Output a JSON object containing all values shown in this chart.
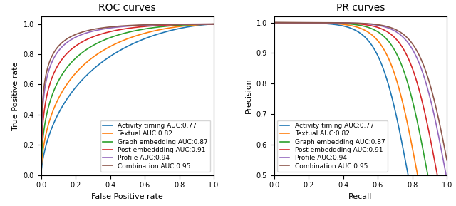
{
  "roc_title": "ROC curves",
  "pr_title": "PR curves",
  "roc_xlabel": "False Positive rate",
  "roc_ylabel": "True Positive rate",
  "pr_xlabel": "Recall",
  "pr_ylabel": "Precision",
  "curves": [
    {
      "label": "Activity timing AUC:0.77",
      "color": "#1f77b4",
      "auc_roc": 0.77,
      "auc_pr": 0.77
    },
    {
      "label": "Textual AUC:0.82",
      "color": "#ff7f0e",
      "auc_roc": 0.82,
      "auc_pr": 0.82
    },
    {
      "label": "Graph embedding AUC:0.87",
      "color": "#2ca02c",
      "auc_roc": 0.87,
      "auc_pr": 0.87
    },
    {
      "label": "Post embeddding AUC:0.91",
      "color": "#d62728",
      "auc_roc": 0.91,
      "auc_pr": 0.91
    },
    {
      "label": "Profile AUC:0.94",
      "color": "#9467bd",
      "auc_roc": 0.94,
      "auc_pr": 0.94
    },
    {
      "label": "Combination AUC:0.95",
      "color": "#8c564b",
      "auc_roc": 0.95,
      "auc_pr": 0.95
    }
  ],
  "legend_fontsize": 6.5,
  "axis_fontsize": 8,
  "title_fontsize": 10,
  "roc_ylim": [
    0.0,
    1.05
  ],
  "pr_ylim": [
    0.5,
    1.02
  ],
  "figsize": [
    6.4,
    2.89
  ],
  "dpi": 100
}
